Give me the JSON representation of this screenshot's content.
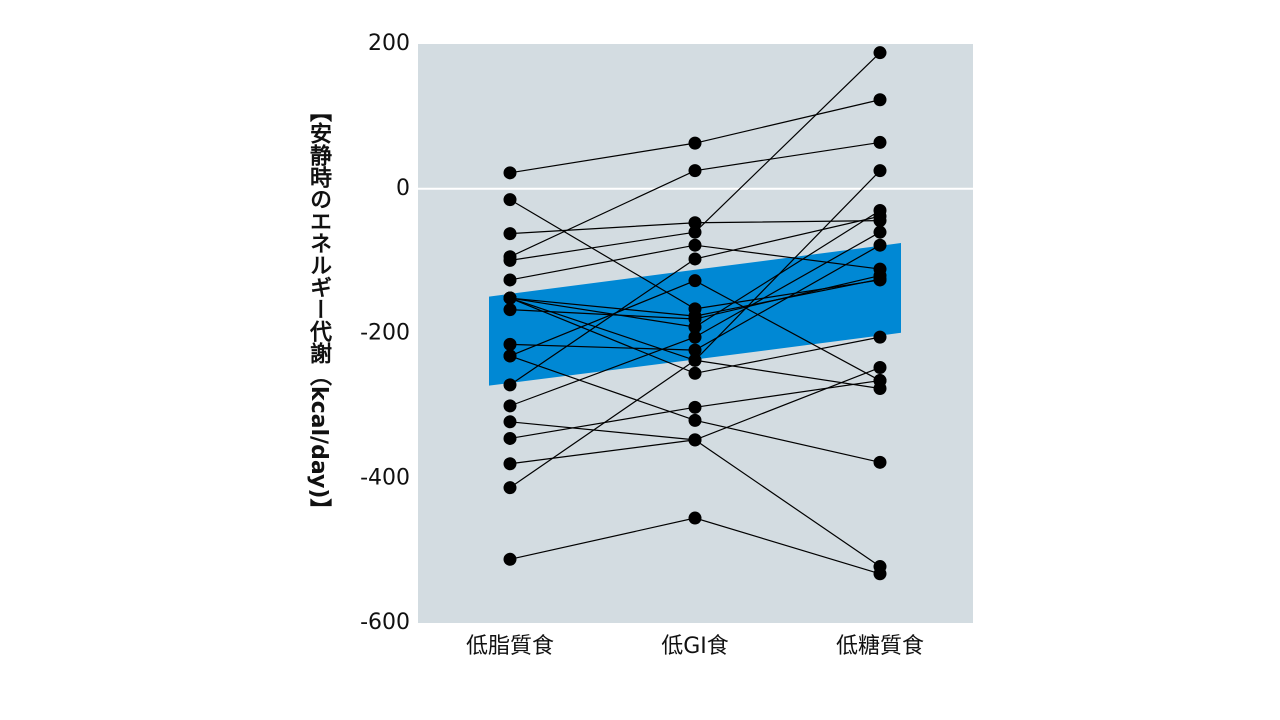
{
  "chart_data": {
    "type": "line",
    "ylabel": "【安静時のエネルギー代謝（kcal/day)】",
    "categories": [
      "低脂質食",
      "低GI食",
      "低糖質食"
    ],
    "ylim": [
      -600,
      200
    ],
    "yticks": [
      -600,
      -400,
      -200,
      0,
      200
    ],
    "hline": 0,
    "hline_color": "#ffffff",
    "background": "#d3dce1",
    "band": {
      "color": "#0088d4",
      "lower": [
        -272,
        -236,
        -199
      ],
      "upper": [
        -149,
        -112,
        -75
      ]
    },
    "series": [
      {
        "color": "#000000",
        "values": [
          22,
          63,
          123
        ]
      },
      {
        "color": "#000000",
        "values": [
          -15,
          -166,
          -126
        ]
      },
      {
        "color": "#000000",
        "values": [
          -62,
          -47,
          -44
        ]
      },
      {
        "color": "#000000",
        "values": [
          -94,
          25,
          64
        ]
      },
      {
        "color": "#000000",
        "values": [
          -99,
          -60,
          188
        ]
      },
      {
        "color": "#000000",
        "values": [
          -126,
          -78,
          -111
        ]
      },
      {
        "color": "#000000",
        "values": [
          -151,
          -176,
          -125
        ]
      },
      {
        "color": "#000000",
        "values": [
          -151,
          -191,
          -30
        ]
      },
      {
        "color": "#000000",
        "values": [
          -151,
          -237,
          -276
        ]
      },
      {
        "color": "#000000",
        "values": [
          -167,
          -180,
          -120
        ]
      },
      {
        "color": "#000000",
        "values": [
          -215,
          -223,
          -78
        ]
      },
      {
        "color": "#000000",
        "values": [
          -231,
          -127,
          -265
        ]
      },
      {
        "color": "#000000",
        "values": [
          -231,
          -320,
          -378
        ]
      },
      {
        "color": "#000000",
        "values": [
          -271,
          -97,
          -38
        ]
      },
      {
        "color": "#000000",
        "values": [
          -300,
          -205,
          -60
        ]
      },
      {
        "color": "#000000",
        "values": [
          -322,
          -347,
          -522
        ]
      },
      {
        "color": "#000000",
        "values": [
          -345,
          -302,
          -265
        ]
      },
      {
        "color": "#000000",
        "values": [
          -380,
          -347,
          -247
        ]
      },
      {
        "color": "#000000",
        "values": [
          -413,
          -237,
          25
        ]
      },
      {
        "color": "#000000",
        "values": [
          -512,
          -455,
          -532
        ]
      },
      {
        "color": "#000000",
        "values": [
          -151,
          -255,
          -205
        ]
      }
    ]
  }
}
